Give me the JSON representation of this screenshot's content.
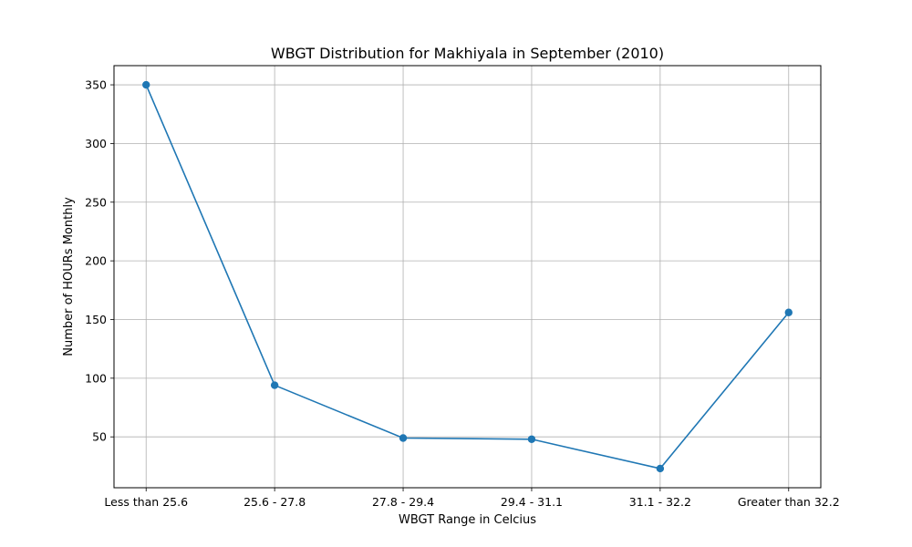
{
  "chart_data": {
    "type": "line",
    "title": "WBGT Distribution for Makhiyala in September (2010)",
    "xlabel": "WBGT Range in Celcius",
    "ylabel": "Number of HOURs Monthly",
    "categories": [
      "Less than 25.6",
      "25.6 - 27.8",
      "27.8 - 29.4",
      "29.4 - 31.1",
      "31.1 - 32.2",
      "Greater than 32.2"
    ],
    "series": [
      {
        "values": [
          350,
          94,
          49,
          48,
          23,
          156
        ]
      }
    ],
    "ylim": [
      6.65,
      366.35
    ],
    "yticks": [
      50,
      100,
      150,
      200,
      250,
      300,
      350
    ],
    "grid": true,
    "line_color": "#1f77b4",
    "marker": "circle"
  }
}
